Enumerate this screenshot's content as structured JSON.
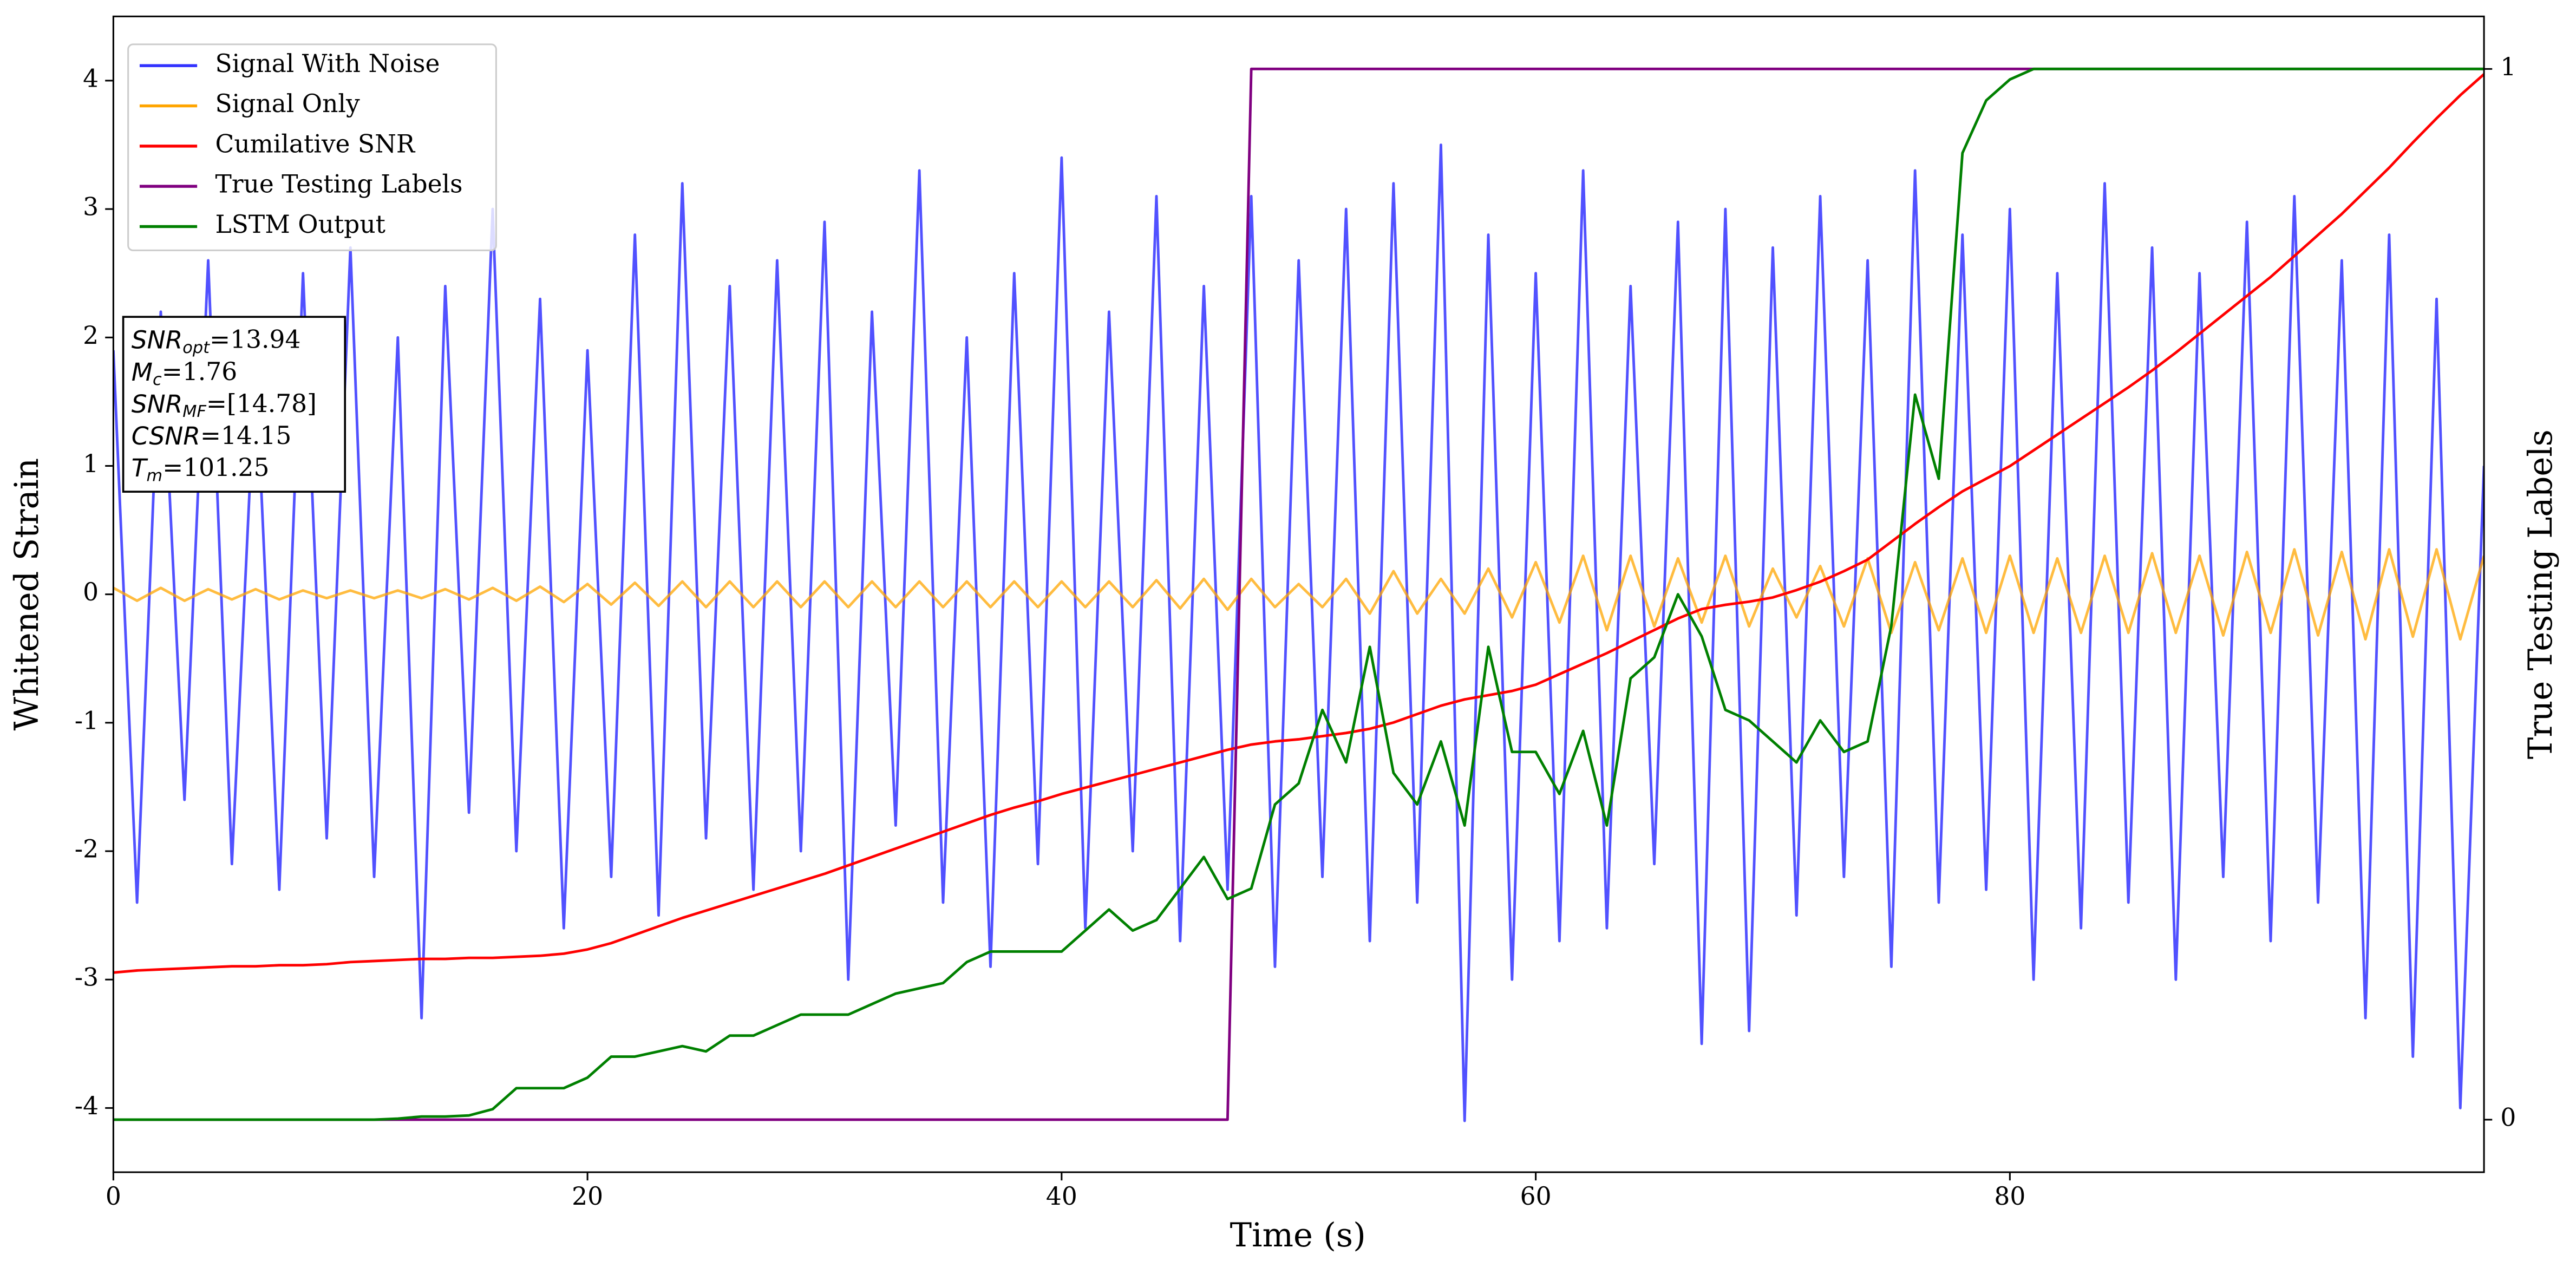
{
  "chart_data": {
    "type": "line",
    "xlabel": "Time (s)",
    "ylabel": "Whitened Strain",
    "y2label": "True Testing Labels",
    "xlim": [
      0,
      100
    ],
    "xticks": [
      0,
      20,
      40,
      60,
      80
    ],
    "ylim": [
      -4.5,
      4.5
    ],
    "yticks": [
      -4,
      -3,
      -2,
      -1,
      0,
      1,
      2,
      3,
      4
    ],
    "y2lim": [
      -0.05,
      1.05
    ],
    "y2ticks": [
      0,
      1
    ],
    "grid": false,
    "legend": "upper left",
    "x": [
      0,
      1,
      2,
      3,
      4,
      5,
      6,
      7,
      8,
      9,
      10,
      11,
      12,
      13,
      14,
      15,
      16,
      17,
      18,
      19,
      20,
      21,
      22,
      23,
      24,
      25,
      26,
      27,
      28,
      29,
      30,
      31,
      32,
      33,
      34,
      35,
      36,
      37,
      38,
      39,
      40,
      41,
      42,
      43,
      44,
      45,
      46,
      47,
      48,
      49,
      50,
      51,
      52,
      53,
      54,
      55,
      56,
      57,
      58,
      59,
      60,
      61,
      62,
      63,
      64,
      65,
      66,
      67,
      68,
      69,
      70,
      71,
      72,
      73,
      74,
      75,
      76,
      77,
      78,
      79,
      80,
      81,
      82,
      83,
      84,
      85,
      86,
      87,
      88,
      89,
      90,
      91,
      92,
      93,
      94,
      95,
      96,
      97,
      98,
      99,
      100
    ],
    "series": [
      {
        "name": "Signal With Noise",
        "color": "#3333ff",
        "axis": "y",
        "values": [
          1.9,
          -2.4,
          2.2,
          -1.6,
          2.6,
          -2.1,
          1.8,
          -2.3,
          2.5,
          -1.9,
          2.7,
          -2.2,
          2.0,
          -3.3,
          2.4,
          -1.7,
          3.0,
          -2.0,
          2.3,
          -2.6,
          1.9,
          -2.2,
          2.8,
          -2.5,
          3.2,
          -1.9,
          2.4,
          -2.3,
          2.6,
          -2.0,
          2.9,
          -3.0,
          2.2,
          -1.8,
          3.3,
          -2.4,
          2.0,
          -2.9,
          2.5,
          -2.1,
          3.4,
          -2.6,
          2.2,
          -2.0,
          3.1,
          -2.7,
          2.4,
          -2.3,
          3.1,
          -2.9,
          2.6,
          -2.2,
          3.0,
          -2.7,
          3.2,
          -2.4,
          3.5,
          -4.1,
          2.8,
          -3.0,
          2.5,
          -2.7,
          3.3,
          -2.6,
          2.4,
          -2.1,
          2.9,
          -3.5,
          3.0,
          -3.4,
          2.7,
          -2.5,
          3.1,
          -2.2,
          2.6,
          -2.9,
          3.3,
          -2.4,
          2.8,
          -2.3,
          3.0,
          -3.0,
          2.5,
          -2.6,
          3.2,
          -2.4,
          2.7,
          -3.0,
          2.5,
          -2.2,
          2.9,
          -2.7,
          3.1,
          -2.4,
          2.6,
          -3.3,
          2.8,
          -3.6,
          2.3,
          -4.0,
          1.0
        ]
      },
      {
        "name": "Signal Only",
        "color": "#ffa500",
        "axis": "y",
        "values": [
          0.05,
          -0.05,
          0.05,
          -0.05,
          0.04,
          -0.04,
          0.04,
          -0.04,
          0.03,
          -0.03,
          0.03,
          -0.03,
          0.03,
          -0.03,
          0.04,
          -0.04,
          0.05,
          -0.05,
          0.06,
          -0.06,
          0.08,
          -0.08,
          0.09,
          -0.09,
          0.1,
          -0.1,
          0.1,
          -0.1,
          0.1,
          -0.1,
          0.1,
          -0.1,
          0.1,
          -0.1,
          0.1,
          -0.1,
          0.1,
          -0.1,
          0.1,
          -0.1,
          0.1,
          -0.1,
          0.1,
          -0.1,
          0.11,
          -0.11,
          0.12,
          -0.12,
          0.12,
          -0.1,
          0.08,
          -0.1,
          0.12,
          -0.15,
          0.18,
          -0.15,
          0.12,
          -0.15,
          0.2,
          -0.18,
          0.25,
          -0.22,
          0.3,
          -0.28,
          0.3,
          -0.25,
          0.28,
          -0.22,
          0.3,
          -0.25,
          0.2,
          -0.18,
          0.22,
          -0.25,
          0.28,
          -0.3,
          0.25,
          -0.28,
          0.28,
          -0.3,
          0.3,
          -0.3,
          0.28,
          -0.3,
          0.3,
          -0.3,
          0.32,
          -0.3,
          0.3,
          -0.32,
          0.33,
          -0.3,
          0.35,
          -0.32,
          0.33,
          -0.35,
          0.35,
          -0.33,
          0.35,
          -0.35,
          0.3
        ]
      },
      {
        "name": "Cumilative SNR",
        "color": "#ff0000",
        "axis": "y2",
        "values": [
          0.14,
          0.142,
          0.143,
          0.144,
          0.145,
          0.146,
          0.146,
          0.147,
          0.147,
          0.148,
          0.15,
          0.151,
          0.152,
          0.153,
          0.153,
          0.154,
          0.154,
          0.155,
          0.156,
          0.158,
          0.162,
          0.168,
          0.176,
          0.184,
          0.192,
          0.199,
          0.206,
          0.213,
          0.22,
          0.227,
          0.234,
          0.242,
          0.25,
          0.258,
          0.266,
          0.274,
          0.282,
          0.29,
          0.297,
          0.303,
          0.31,
          0.316,
          0.322,
          0.328,
          0.334,
          0.34,
          0.346,
          0.352,
          0.357,
          0.36,
          0.362,
          0.365,
          0.368,
          0.372,
          0.378,
          0.386,
          0.394,
          0.4,
          0.404,
          0.408,
          0.414,
          0.424,
          0.434,
          0.444,
          0.455,
          0.466,
          0.477,
          0.486,
          0.49,
          0.493,
          0.497,
          0.504,
          0.512,
          0.522,
          0.533,
          0.55,
          0.567,
          0.583,
          0.598,
          0.61,
          0.622,
          0.637,
          0.652,
          0.667,
          0.682,
          0.697,
          0.713,
          0.73,
          0.748,
          0.766,
          0.784,
          0.802,
          0.822,
          0.842,
          0.862,
          0.884,
          0.906,
          0.93,
          0.953,
          0.975,
          0.995
        ]
      },
      {
        "name": "True Testing Labels",
        "color": "#800080",
        "axis": "y2",
        "values": [
          0,
          0,
          0,
          0,
          0,
          0,
          0,
          0,
          0,
          0,
          0,
          0,
          0,
          0,
          0,
          0,
          0,
          0,
          0,
          0,
          0,
          0,
          0,
          0,
          0,
          0,
          0,
          0,
          0,
          0,
          0,
          0,
          0,
          0,
          0,
          0,
          0,
          0,
          0,
          0,
          0,
          0,
          0,
          0,
          0,
          0,
          0,
          0,
          1,
          1,
          1,
          1,
          1,
          1,
          1,
          1,
          1,
          1,
          1,
          1,
          1,
          1,
          1,
          1,
          1,
          1,
          1,
          1,
          1,
          1,
          1,
          1,
          1,
          1,
          1,
          1,
          1,
          1,
          1,
          1,
          1,
          1,
          1,
          1,
          1,
          1,
          1,
          1,
          1,
          1,
          1,
          1,
          1,
          1,
          1,
          1,
          1,
          1,
          1,
          1,
          1
        ]
      },
      {
        "name": "LSTM Output",
        "color": "#008000",
        "axis": "y2",
        "values": [
          0,
          0,
          0,
          0,
          0,
          0,
          0,
          0,
          0,
          0,
          0,
          0,
          0.001,
          0.003,
          0.003,
          0.004,
          0.01,
          0.03,
          0.03,
          0.03,
          0.04,
          0.06,
          0.06,
          0.065,
          0.07,
          0.065,
          0.08,
          0.08,
          0.09,
          0.1,
          0.1,
          0.1,
          0.11,
          0.12,
          0.125,
          0.13,
          0.15,
          0.16,
          0.16,
          0.16,
          0.16,
          0.18,
          0.2,
          0.18,
          0.19,
          0.22,
          0.25,
          0.21,
          0.22,
          0.3,
          0.32,
          0.39,
          0.34,
          0.45,
          0.33,
          0.3,
          0.36,
          0.28,
          0.45,
          0.35,
          0.35,
          0.31,
          0.37,
          0.28,
          0.42,
          0.44,
          0.5,
          0.46,
          0.39,
          0.38,
          0.36,
          0.34,
          0.38,
          0.35,
          0.36,
          0.47,
          0.69,
          0.61,
          0.92,
          0.97,
          0.99,
          1,
          1,
          1,
          1,
          1,
          1,
          1,
          1,
          1,
          1,
          1,
          1,
          1,
          1,
          1,
          1,
          1,
          1,
          1,
          1
        ]
      }
    ],
    "annotation": [
      {
        "symbol": "SNR",
        "subscript": "opt",
        "text": "=13.94"
      },
      {
        "symbol": "M",
        "subscript": "c",
        "text": "=1.76"
      },
      {
        "symbol": "SNR",
        "subscript": "MF",
        "text": "=[14.78]"
      },
      {
        "symbol": "CSNR",
        "text": "=14.15"
      },
      {
        "symbol": "T",
        "subscript": "m",
        "text": "=101.25"
      }
    ]
  }
}
